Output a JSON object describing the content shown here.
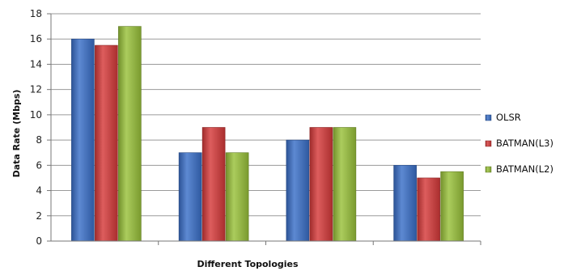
{
  "chart_data": {
    "type": "bar",
    "categories": [
      "",
      "",
      "",
      ""
    ],
    "series": [
      {
        "name": "OLSR",
        "values": [
          16,
          7,
          8,
          6
        ],
        "color": "#3a6fc8"
      },
      {
        "name": "BATMAN(L3)",
        "values": [
          15.5,
          9,
          9,
          5
        ],
        "color": "#d53a3a"
      },
      {
        "name": "BATMAN(L2)",
        "values": [
          17,
          7,
          9,
          5.5
        ],
        "color": "#99c13a"
      }
    ],
    "title": "",
    "xlabel": "Different Topologies",
    "ylabel": "Data Rate (Mbps)",
    "ylim": [
      0,
      18
    ],
    "yticks": [
      0,
      2,
      4,
      6,
      8,
      10,
      12,
      14,
      16,
      18
    ],
    "grid": true,
    "legend_position": "right"
  }
}
